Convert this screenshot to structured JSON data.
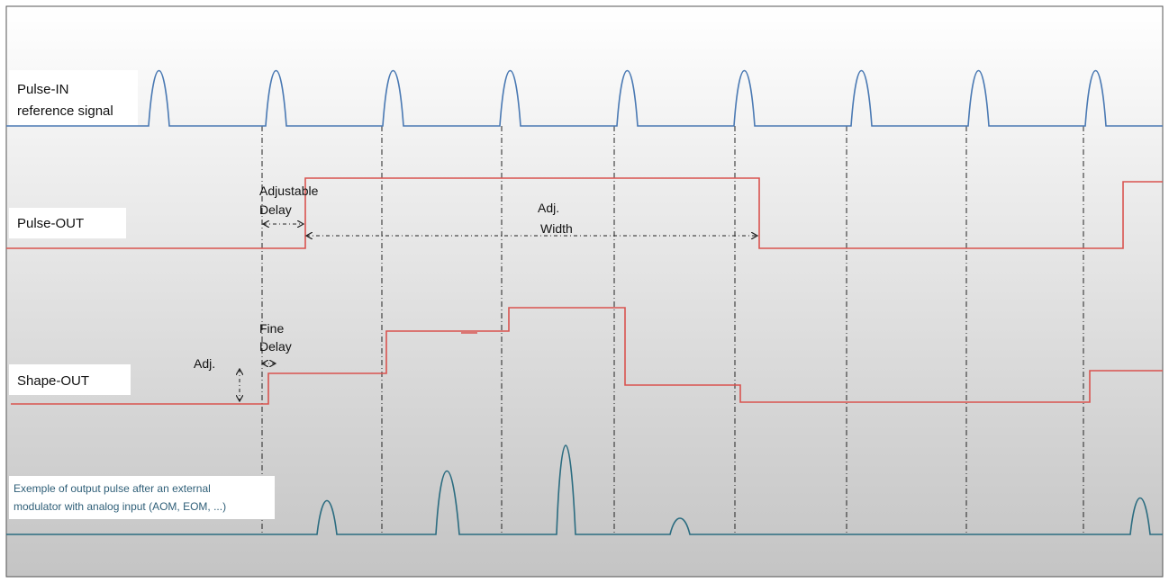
{
  "signals": {
    "pulse_in": {
      "label_line1": "Pulse-IN",
      "label_line2": "reference signal",
      "color": "#4a79b3"
    },
    "pulse_out": {
      "label": "Pulse-OUT",
      "color": "#d9534f"
    },
    "shape_out": {
      "label": "Shape-OUT",
      "color": "#d9534f"
    },
    "output": {
      "label_line1": "Exemple of output pulse after an external",
      "label_line2": "modulator with analog input (AOM, EOM, ...)",
      "color": "#2b6c80"
    }
  },
  "annotations": {
    "adjustable_delay_line1": "Adjustable",
    "adjustable_delay_line2": "Delay",
    "adj_width_line1": "Adj.",
    "adj_width_line2": "Width",
    "fine_delay_line1": "Fine",
    "fine_delay_line2": "Delay",
    "adj_amplitude": "Adj."
  },
  "colors": {
    "background_top": "#ffffff",
    "background_bottom": "#c4c4c4",
    "border": "#555555"
  }
}
